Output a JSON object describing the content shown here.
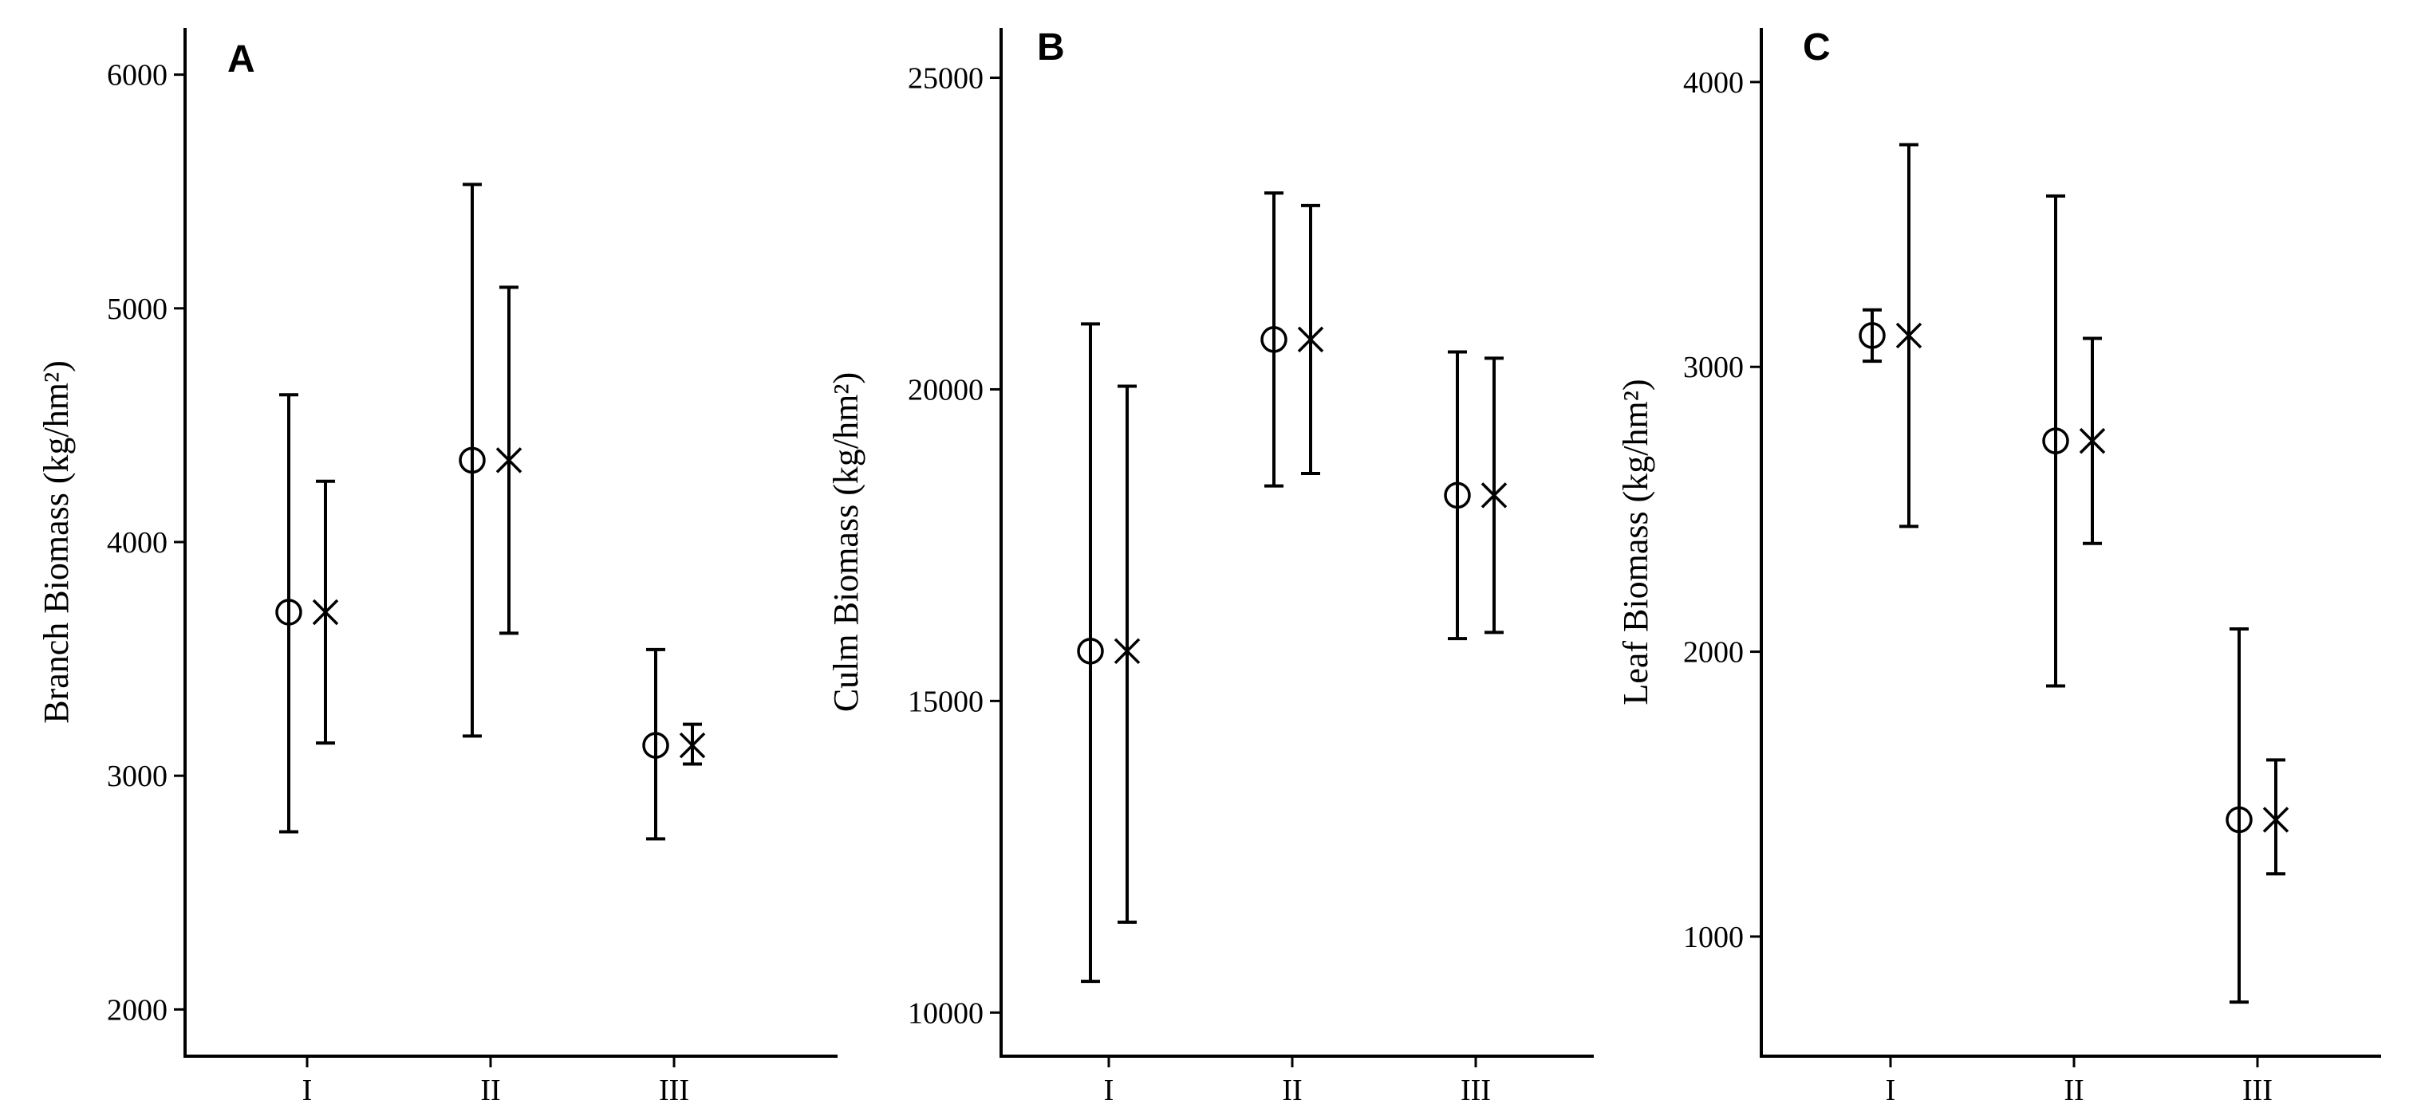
{
  "chart_data": [
    {
      "type": "scatter",
      "panel": "A",
      "ylabel": "Branch Biomass (kg/hm²)",
      "categories": [
        "I",
        "II",
        "III"
      ],
      "yticks": [
        2000,
        3000,
        4000,
        5000,
        6000
      ],
      "ylim": [
        1800,
        6200
      ],
      "series": [
        {
          "marker": "circle",
          "values": [
            3700,
            4350,
            3130
          ],
          "lower": [
            2760,
            3170,
            2730
          ],
          "upper": [
            4630,
            5530,
            3540
          ]
        },
        {
          "marker": "x",
          "values": [
            3700,
            4350,
            3130
          ],
          "lower": [
            3140,
            3610,
            3050
          ],
          "upper": [
            4260,
            5090,
            3220
          ]
        }
      ]
    },
    {
      "type": "scatter",
      "panel": "B",
      "ylabel": "Culm Biomass (kg/hm²)",
      "categories": [
        "I",
        "II",
        "III"
      ],
      "yticks": [
        10000,
        15000,
        20000,
        25000
      ],
      "ylim": [
        9300,
        25800
      ],
      "series": [
        {
          "marker": "circle",
          "values": [
            15800,
            20800,
            18300
          ],
          "lower": [
            10500,
            18450,
            16000
          ],
          "upper": [
            21050,
            23150,
            20600
          ]
        },
        {
          "marker": "x",
          "values": [
            15800,
            20800,
            18300
          ],
          "lower": [
            11450,
            18650,
            16100
          ],
          "upper": [
            20050,
            22950,
            20500
          ]
        }
      ]
    },
    {
      "type": "scatter",
      "panel": "C",
      "ylabel": "Leaf Biomass (kg/hm²)",
      "categories": [
        "I",
        "II",
        "III"
      ],
      "yticks": [
        1000,
        2000,
        3000,
        4000
      ],
      "ylim": [
        580,
        4190
      ],
      "series": [
        {
          "marker": "circle",
          "values": [
            3110,
            2740,
            1410
          ],
          "lower": [
            3020,
            1880,
            770
          ],
          "upper": [
            3200,
            3600,
            2080
          ]
        },
        {
          "marker": "x",
          "values": [
            3110,
            2740,
            1410
          ],
          "lower": [
            2440,
            2380,
            1220
          ],
          "upper": [
            3780,
            3100,
            1620
          ]
        }
      ]
    }
  ]
}
